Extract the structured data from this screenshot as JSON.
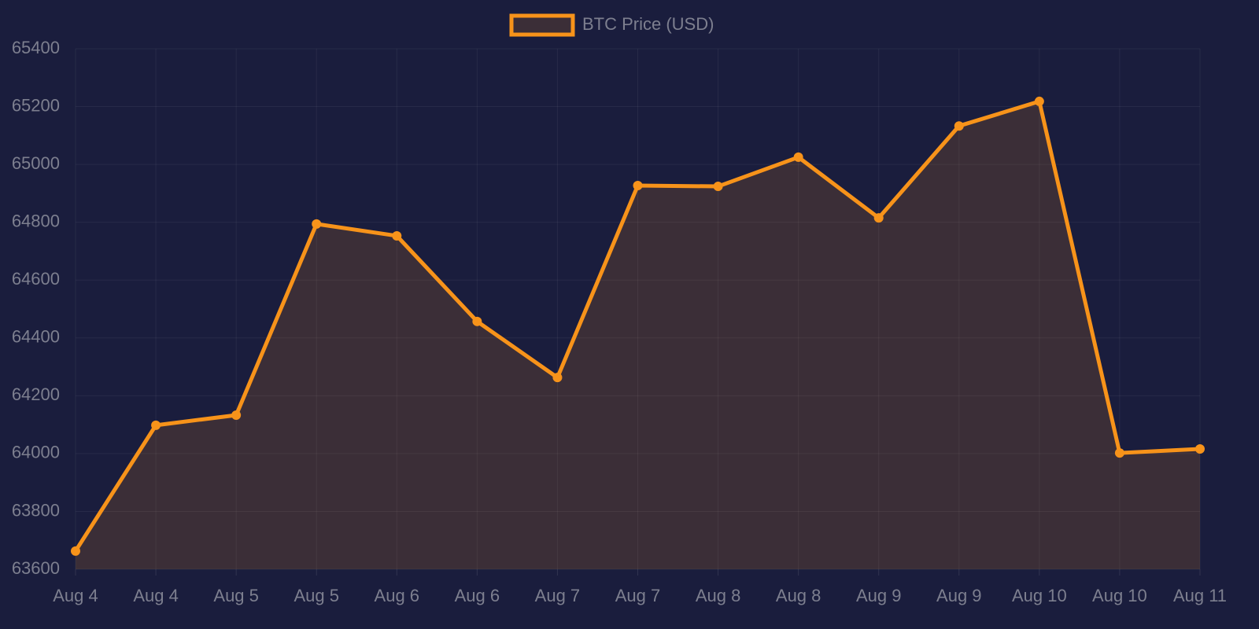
{
  "chart_data": {
    "type": "line",
    "categories": [
      "Aug 4",
      "Aug 4",
      "Aug 5",
      "Aug 5",
      "Aug 6",
      "Aug 6",
      "Aug 7",
      "Aug 7",
      "Aug 8",
      "Aug 8",
      "Aug 9",
      "Aug 9",
      "Aug 10",
      "Aug 10",
      "Aug 11"
    ],
    "series": [
      {
        "name": "BTC Price (USD)",
        "color": "#f7931a",
        "fill_color": "rgba(247,147,26,0.15)",
        "values": [
          63663,
          64098,
          64133,
          64794,
          64753,
          64457,
          64263,
          64927,
          64924,
          65025,
          64815,
          65133,
          65218,
          64002,
          64016
        ]
      }
    ],
    "ylim": [
      63600,
      65400
    ],
    "yticks": [
      63600,
      63800,
      64000,
      64200,
      64400,
      64600,
      64800,
      65000,
      65200,
      65400
    ],
    "grid": true,
    "legend": "top"
  }
}
